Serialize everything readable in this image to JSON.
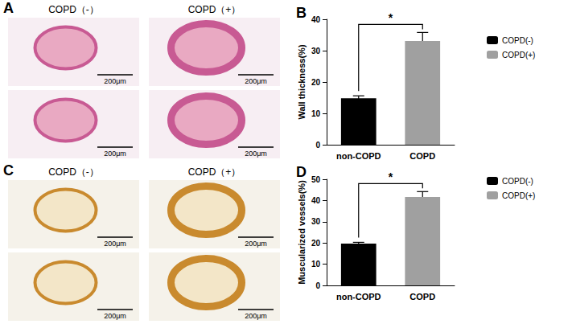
{
  "chart_data": [
    {
      "type": "bar",
      "title": "B",
      "y_label": "Wall thickness(%)",
      "categories": [
        "non-COPD",
        "COPD"
      ],
      "series": [
        {
          "name": "COPD(-)",
          "color": "#000000",
          "values": [
            14.8,
            null
          ],
          "errors": [
            0.8,
            null
          ]
        },
        {
          "name": "COPD(+)",
          "color": "#a0a0a0",
          "values": [
            null,
            33.1
          ],
          "errors": [
            null,
            2.7
          ]
        }
      ],
      "ylim": [
        0,
        40
      ],
      "yticks": [
        0,
        10,
        20,
        30,
        40
      ],
      "grid": false,
      "legend": "right",
      "annotations": [
        {
          "text": "*",
          "between": [
            0,
            1
          ]
        }
      ]
    },
    {
      "type": "bar",
      "title": "D",
      "y_label": "Muscularized vessels(%)",
      "categories": [
        "non-COPD",
        "COPD"
      ],
      "series": [
        {
          "name": "COPD(-)",
          "color": "#000000",
          "values": [
            19.7,
            null
          ],
          "errors": [
            0.6,
            null
          ]
        },
        {
          "name": "COPD(+)",
          "color": "#a0a0a0",
          "values": [
            null,
            41.7
          ],
          "errors": [
            null,
            2.5
          ]
        }
      ],
      "ylim": [
        0,
        50
      ],
      "yticks": [
        0,
        10,
        20,
        30,
        40,
        50
      ],
      "grid": false,
      "legend": "right",
      "annotations": [
        {
          "text": "*",
          "between": [
            0,
            1
          ]
        }
      ]
    }
  ],
  "image_panels": [
    {
      "label": "A",
      "columns": [
        "COPD（-）",
        "COPD（+）"
      ],
      "rows": 2,
      "scale_bar": "200μm"
    },
    {
      "label": "C",
      "columns": [
        "COPD（-）",
        "COPD（+）"
      ],
      "rows": 2,
      "scale_bar": "200μm"
    }
  ]
}
